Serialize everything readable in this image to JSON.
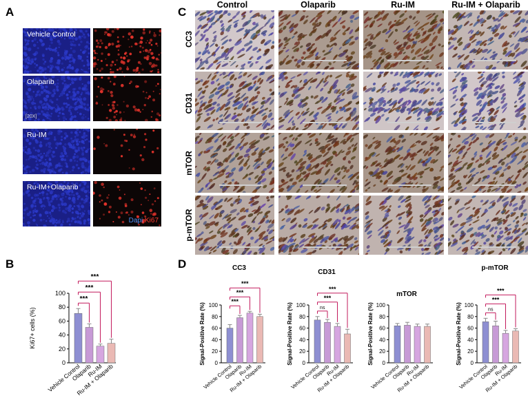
{
  "panels": {
    "a": "A",
    "b": "B",
    "c": "C",
    "d": "D"
  },
  "panel_a": {
    "rows": [
      "Vehicle Control",
      "Olaparib",
      "Ru-IM",
      "Ru-IM+Olaparib"
    ],
    "magnification": "[20X]",
    "legend_dapi": "Dapi",
    "legend_ki67": "Ki67",
    "colors": {
      "dapi": "#2b39c8",
      "ki67": "#e3332b"
    }
  },
  "panel_c": {
    "columns": [
      "Control",
      "Olaparib",
      "Ru-IM",
      "Ru-IM + Olaparib"
    ],
    "rows": [
      "CC3",
      "CD31",
      "mTOR",
      "p-mTOR"
    ]
  },
  "chart_data": [
    {
      "type": "bar",
      "panel": "B",
      "title": "",
      "ylabel": "Ki67+ cells (%)",
      "ylim": [
        0,
        100
      ],
      "yticks": [
        0,
        20,
        40,
        60,
        80,
        100
      ],
      "categories": [
        "Vehicle Control",
        "Olaparib",
        "Ru-IM",
        "Ru-IM + Olaparib"
      ],
      "values": [
        71,
        51,
        24,
        28
      ],
      "errors": [
        7,
        5,
        3,
        6
      ],
      "colors": [
        "#8e8fd2",
        "#c79ad6",
        "#d6a6e0",
        "#eab9b4"
      ],
      "significance": [
        {
          "from": 0,
          "to": 1,
          "label": "***"
        },
        {
          "from": 0,
          "to": 2,
          "label": "***"
        },
        {
          "from": 0,
          "to": 3,
          "label": "***"
        }
      ]
    },
    {
      "type": "bar",
      "panel": "D",
      "title": "CC3",
      "ylabel": "Signal-Positive Rate (%)",
      "ylim": [
        0,
        100
      ],
      "yticks": [
        0,
        20,
        40,
        60,
        80,
        100
      ],
      "categories": [
        "Vehicle Control",
        "Olaparib",
        "Ru-IM",
        "Ru-IM + Olaparib"
      ],
      "values": [
        60,
        78,
        86,
        80
      ],
      "errors": [
        6,
        4,
        3,
        4
      ],
      "colors": [
        "#8e8fd2",
        "#c79ad6",
        "#d6a6e0",
        "#eab9b4"
      ],
      "significance": [
        {
          "from": 0,
          "to": 1,
          "label": "***"
        },
        {
          "from": 0,
          "to": 2,
          "label": "***"
        },
        {
          "from": 0,
          "to": 3,
          "label": "***"
        }
      ]
    },
    {
      "type": "bar",
      "panel": "D",
      "title": "CD31",
      "ylabel": "Signal-Positive Rate (%)",
      "ylim": [
        0,
        100
      ],
      "yticks": [
        0,
        20,
        40,
        60,
        80,
        100
      ],
      "categories": [
        "Vehicle Control",
        "Olaparib",
        "Ru-IM",
        "Ru-IM + Olaparib"
      ],
      "values": [
        74,
        70,
        63,
        50
      ],
      "errors": [
        6,
        5,
        5,
        8
      ],
      "colors": [
        "#8e8fd2",
        "#c79ad6",
        "#d6a6e0",
        "#eab9b4"
      ],
      "significance": [
        {
          "from": 0,
          "to": 1,
          "label": "ns"
        },
        {
          "from": 0,
          "to": 2,
          "label": "***"
        },
        {
          "from": 0,
          "to": 3,
          "label": "***"
        }
      ]
    },
    {
      "type": "bar",
      "panel": "D",
      "title": "mTOR",
      "ylabel": "Signal-Positive Rate (%)",
      "ylim": [
        0,
        100
      ],
      "yticks": [
        0,
        20,
        40,
        60,
        80,
        100
      ],
      "categories": [
        "Vehicle Control",
        "Olaparib",
        "Ru-IM",
        "Ru-IM + Olaparib"
      ],
      "values": [
        64,
        65,
        63,
        63
      ],
      "errors": [
        4,
        5,
        4,
        4
      ],
      "colors": [
        "#8e8fd2",
        "#c79ad6",
        "#d6a6e0",
        "#eab9b4"
      ],
      "significance": []
    },
    {
      "type": "bar",
      "panel": "D",
      "title": "p-mTOR",
      "ylabel": "Signal-Positive Rate (%)",
      "ylim": [
        0,
        100
      ],
      "yticks": [
        0,
        20,
        40,
        60,
        80,
        100
      ],
      "categories": [
        "Vehicle Control",
        "Olaparib",
        "Ru-IM",
        "Ru-IM + Olaparib"
      ],
      "values": [
        71,
        64,
        51,
        55
      ],
      "errors": [
        6,
        8,
        5,
        4
      ],
      "colors": [
        "#8e8fd2",
        "#c79ad6",
        "#d6a6e0",
        "#eab9b4"
      ],
      "significance": [
        {
          "from": 0,
          "to": 1,
          "label": "ns"
        },
        {
          "from": 0,
          "to": 2,
          "label": "***"
        },
        {
          "from": 0,
          "to": 3,
          "label": "***"
        }
      ]
    }
  ]
}
